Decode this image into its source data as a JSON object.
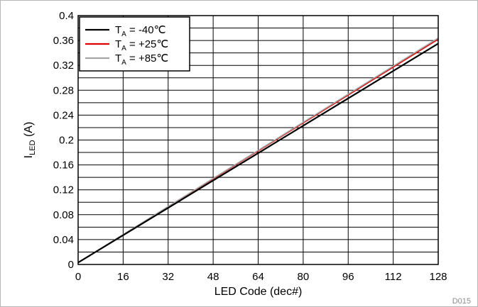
{
  "chart_data": {
    "type": "line",
    "title": "",
    "xlabel": "LED Code (dec#)",
    "ylabel_main": "I",
    "ylabel_sub": "LED",
    "ylabel_unit": " (A)",
    "xlim": [
      0,
      128
    ],
    "ylim": [
      0,
      0.4
    ],
    "x_ticks": [
      "0",
      "16",
      "32",
      "48",
      "64",
      "80",
      "96",
      "112",
      "128"
    ],
    "y_ticks": [
      "0",
      "0.04",
      "0.08",
      "0.12",
      "0.16",
      "0.2",
      "0.24",
      "0.28",
      "0.32",
      "0.36",
      "0.4"
    ],
    "grid": true,
    "legend_position": "top-left",
    "series": [
      {
        "name": "T_A = -40℃",
        "legend_main": "T",
        "legend_sub": "A",
        "legend_rest": " = -40℃",
        "color": "#000000",
        "x": [
          0,
          128
        ],
        "y": [
          0.003,
          0.355
        ]
      },
      {
        "name": "T_A = +25℃",
        "legend_main": "T",
        "legend_sub": "A",
        "legend_rest": " = +25℃",
        "color": "#e00000",
        "x": [
          0,
          128
        ],
        "y": [
          0.003,
          0.362
        ]
      },
      {
        "name": "T_A = +85℃",
        "legend_main": "T",
        "legend_sub": "A",
        "legend_rest": " = +85℃",
        "color": "#a6a6a6",
        "x": [
          0,
          128
        ],
        "y": [
          0.003,
          0.364
        ]
      }
    ],
    "figure_id": "D015"
  }
}
